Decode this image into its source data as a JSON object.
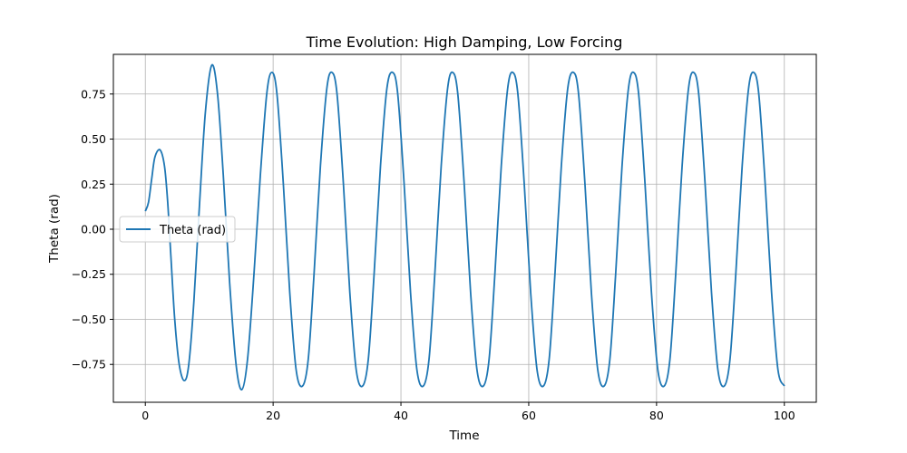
{
  "chart_data": {
    "type": "line",
    "title": "Time Evolution: High Damping, Low Forcing",
    "xlabel": "Time",
    "ylabel": "Theta (rad)",
    "xlim": [
      -5,
      105
    ],
    "ylim": [
      -0.96,
      0.97
    ],
    "xticks": [
      0,
      20,
      40,
      60,
      80,
      100
    ],
    "yticks": [
      -0.75,
      -0.5,
      -0.25,
      0.0,
      0.25,
      0.5,
      0.75
    ],
    "xtick_labels": [
      "0",
      "20",
      "40",
      "60",
      "80",
      "100"
    ],
    "ytick_labels": [
      "−0.75",
      "−0.50",
      "−0.25",
      "0.00",
      "0.25",
      "0.50",
      "0.75"
    ],
    "grid": true,
    "legend_position": "center-left",
    "series": [
      {
        "name": "Theta (rad)",
        "color": "#1f77b4",
        "points": [
          [
            0,
            0.1
          ],
          [
            0.5,
            0.15
          ],
          [
            1.0,
            0.28
          ],
          [
            1.5,
            0.4
          ],
          [
            2.3,
            0.44
          ],
          [
            3.0,
            0.35
          ],
          [
            3.5,
            0.15
          ],
          [
            4.0,
            -0.15
          ],
          [
            4.6,
            -0.5
          ],
          [
            5.3,
            -0.75
          ],
          [
            6.1,
            -0.84
          ],
          [
            6.8,
            -0.75
          ],
          [
            7.6,
            -0.4
          ],
          [
            8.5,
            0.15
          ],
          [
            9.4,
            0.65
          ],
          [
            10.4,
            0.91
          ],
          [
            11.3,
            0.75
          ],
          [
            12.2,
            0.3
          ],
          [
            13.2,
            -0.3
          ],
          [
            14.2,
            -0.75
          ],
          [
            15.1,
            -0.89
          ],
          [
            16.0,
            -0.72
          ],
          [
            17.0,
            -0.25
          ],
          [
            18.0,
            0.3
          ],
          [
            19.0,
            0.75
          ],
          [
            19.8,
            0.87
          ],
          [
            20.6,
            0.75
          ],
          [
            21.6,
            0.25
          ],
          [
            22.6,
            -0.35
          ],
          [
            23.6,
            -0.78
          ],
          [
            24.6,
            -0.87
          ],
          [
            25.5,
            -0.72
          ],
          [
            26.4,
            -0.25
          ],
          [
            27.4,
            0.35
          ],
          [
            28.4,
            0.78
          ],
          [
            29.2,
            0.87
          ],
          [
            30.0,
            0.75
          ],
          [
            31.0,
            0.25
          ],
          [
            32.0,
            -0.35
          ],
          [
            33.0,
            -0.78
          ],
          [
            34.0,
            -0.87
          ],
          [
            34.9,
            -0.72
          ],
          [
            35.8,
            -0.25
          ],
          [
            36.8,
            0.35
          ],
          [
            37.8,
            0.78
          ],
          [
            38.7,
            0.87
          ],
          [
            39.5,
            0.75
          ],
          [
            40.5,
            0.25
          ],
          [
            41.5,
            -0.35
          ],
          [
            42.5,
            -0.78
          ],
          [
            43.5,
            -0.87
          ],
          [
            44.4,
            -0.72
          ],
          [
            45.3,
            -0.25
          ],
          [
            46.3,
            0.35
          ],
          [
            47.3,
            0.78
          ],
          [
            48.1,
            0.87
          ],
          [
            48.9,
            0.75
          ],
          [
            49.9,
            0.25
          ],
          [
            50.9,
            -0.35
          ],
          [
            51.9,
            -0.78
          ],
          [
            52.9,
            -0.87
          ],
          [
            53.8,
            -0.72
          ],
          [
            54.7,
            -0.25
          ],
          [
            55.7,
            0.35
          ],
          [
            56.7,
            0.78
          ],
          [
            57.5,
            0.87
          ],
          [
            58.3,
            0.75
          ],
          [
            59.3,
            0.25
          ],
          [
            60.3,
            -0.35
          ],
          [
            61.3,
            -0.78
          ],
          [
            62.3,
            -0.87
          ],
          [
            63.2,
            -0.72
          ],
          [
            64.1,
            -0.25
          ],
          [
            65.1,
            0.35
          ],
          [
            66.1,
            0.78
          ],
          [
            67.0,
            0.87
          ],
          [
            67.8,
            0.75
          ],
          [
            68.8,
            0.25
          ],
          [
            69.8,
            -0.35
          ],
          [
            70.8,
            -0.78
          ],
          [
            71.8,
            -0.87
          ],
          [
            72.7,
            -0.72
          ],
          [
            73.6,
            -0.25
          ],
          [
            74.6,
            0.35
          ],
          [
            75.6,
            0.78
          ],
          [
            76.4,
            0.87
          ],
          [
            77.2,
            0.75
          ],
          [
            78.2,
            0.25
          ],
          [
            79.2,
            -0.35
          ],
          [
            80.2,
            -0.78
          ],
          [
            81.2,
            -0.87
          ],
          [
            82.1,
            -0.72
          ],
          [
            83.0,
            -0.25
          ],
          [
            84.0,
            0.35
          ],
          [
            85.0,
            0.78
          ],
          [
            85.8,
            0.87
          ],
          [
            86.6,
            0.75
          ],
          [
            87.6,
            0.25
          ],
          [
            88.6,
            -0.35
          ],
          [
            89.6,
            -0.78
          ],
          [
            90.6,
            -0.87
          ],
          [
            91.5,
            -0.72
          ],
          [
            92.4,
            -0.25
          ],
          [
            93.4,
            0.35
          ],
          [
            94.4,
            0.78
          ],
          [
            95.2,
            0.87
          ],
          [
            96.0,
            0.75
          ],
          [
            97.0,
            0.25
          ],
          [
            98.0,
            -0.35
          ],
          [
            99.0,
            -0.78
          ],
          [
            100.0,
            -0.87
          ]
        ]
      }
    ]
  }
}
